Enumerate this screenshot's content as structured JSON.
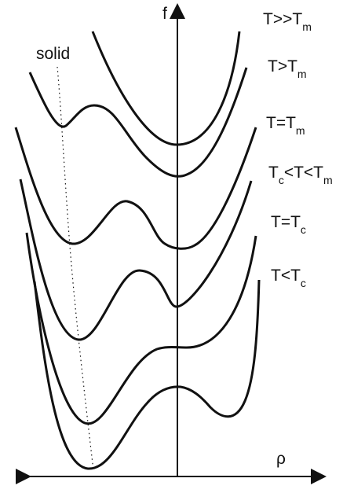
{
  "axes": {
    "vertical_label": "f",
    "horizontal_label": "ρ"
  },
  "annotation": {
    "solid_label": "solid"
  },
  "curves": [
    {
      "label_main": "T>>T",
      "label_sub": "m"
    },
    {
      "label_main": "T>T",
      "label_sub": "m"
    },
    {
      "label_main": "T=T",
      "label_sub": "m"
    },
    {
      "label_main": "T",
      "label_sub": "c",
      "label_mid": "<T<T",
      "label_sub2": "m"
    },
    {
      "label_main": "T=T",
      "label_sub": "c"
    },
    {
      "label_main": "T<T",
      "label_sub": "c"
    }
  ],
  "colors": {
    "line": "#111111",
    "background": "#ffffff"
  }
}
